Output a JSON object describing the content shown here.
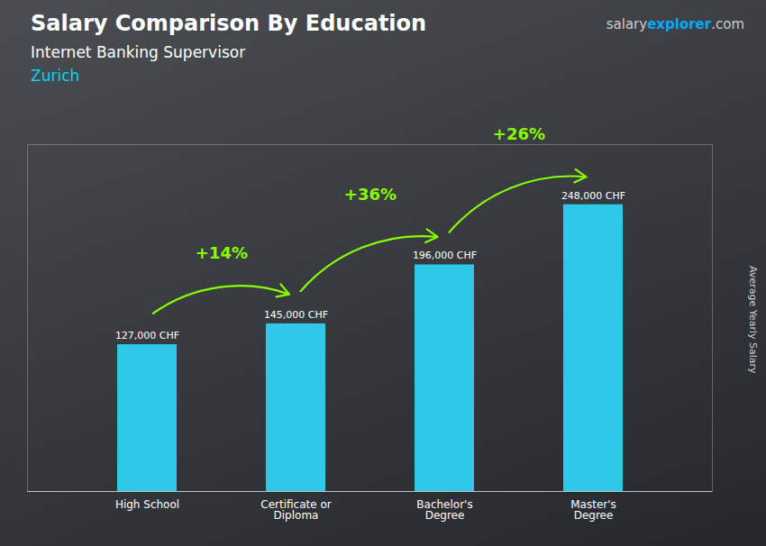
{
  "chart_data": {
    "type": "bar",
    "title": "Salary Comparison By Education",
    "subtitle": "Internet Banking Supervisor",
    "location": {
      "text": "Zurich",
      "color": "#00d4ff"
    },
    "brand": [
      {
        "text": "salary",
        "color": "#cccccc"
      },
      {
        "text": "explorer",
        "color": "#00aaff"
      },
      {
        "text": ".com",
        "color": "#cccccc"
      }
    ],
    "ylabel": "Average Yearly Salary",
    "categories": [
      "High School",
      "Certificate or\nDiploma",
      "Bachelor's\nDegree",
      "Master's\nDegree"
    ],
    "values": [
      127000,
      145000,
      196000,
      248000
    ],
    "value_labels": [
      "127,000 CHF",
      "145,000 CHF",
      "196,000 CHF",
      "248,000 CHF"
    ],
    "data_labels": true,
    "color": "#2ec8e8",
    "annotations": [
      {
        "text": "+14%",
        "from": "High School",
        "to": "Certificate or\nDiploma",
        "color": "#88ff00"
      },
      {
        "text": "+36%",
        "from": "Certificate or\nDiploma",
        "to": "Bachelor's\nDegree",
        "color": "#88ff00"
      },
      {
        "text": "+26%",
        "from": "Bachelor's\nDegree",
        "to": "Master's\nDegree",
        "color": "#88ff00"
      }
    ],
    "ylim": [
      0,
      300000
    ],
    "yticks": [],
    "tick_labels": "x"
  }
}
